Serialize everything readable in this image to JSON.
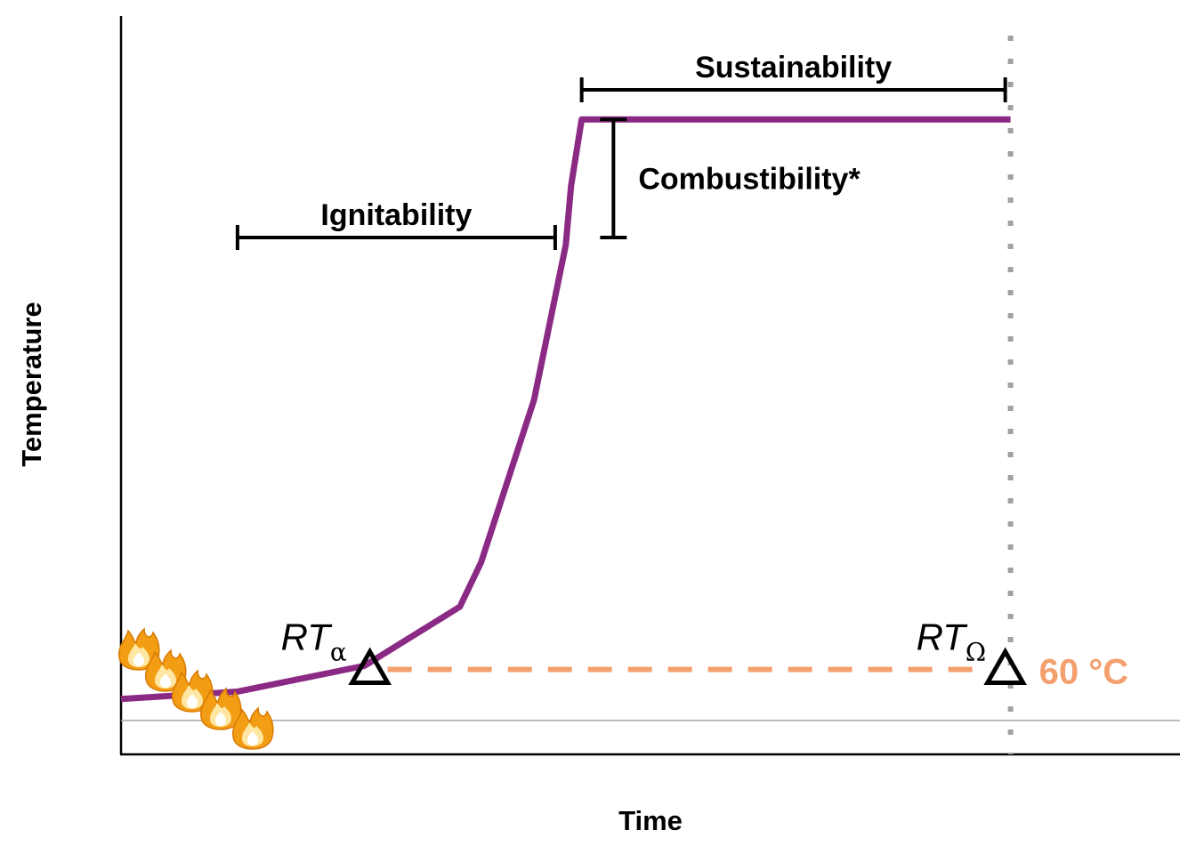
{
  "chart_data": {
    "type": "line",
    "title": "",
    "xlabel": "Time",
    "ylabel": "Temperature",
    "xlim": [
      0,
      100
    ],
    "ylim": [
      0,
      100
    ],
    "grid": false,
    "series": [
      {
        "color": "#8b2a84",
        "x": [
          0,
          11,
          23,
          32,
          34,
          39,
          42,
          42.5,
          43.5,
          84
        ],
        "y": [
          7.5,
          8.5,
          12,
          20,
          26,
          48,
          69,
          77,
          86,
          86
        ]
      }
    ],
    "threshold": {
      "label": "60 °C",
      "value": 11.5,
      "color": "#f4a06e",
      "style": "dashed"
    },
    "vertical_line": {
      "x": 84,
      "color": "#a0a0a0",
      "style": "dotted"
    },
    "baseline": {
      "value": 4.6,
      "color": "#a6a6a6"
    },
    "markers": [
      {
        "name": "RT",
        "subscript": "α",
        "x": 23.5,
        "y": 11.5,
        "shape": "open-triangle"
      },
      {
        "name": "RT",
        "subscript": "Ω",
        "x": 83.5,
        "y": 11.5,
        "shape": "open-triangle"
      }
    ],
    "annotations": [
      {
        "label": "Ignitability",
        "x_range": [
          11,
          41
        ],
        "y": 70,
        "kind": "horizontal-bracket"
      },
      {
        "label": "Combustibility*",
        "y_range": [
          70,
          86
        ],
        "x": 46.5,
        "kind": "vertical-bracket"
      },
      {
        "label": "Sustainability",
        "x_range": [
          43.5,
          83.5
        ],
        "y": 90,
        "kind": "horizontal-bracket"
      }
    ],
    "decoration": {
      "icon": "fire-icon",
      "count": 5
    }
  }
}
